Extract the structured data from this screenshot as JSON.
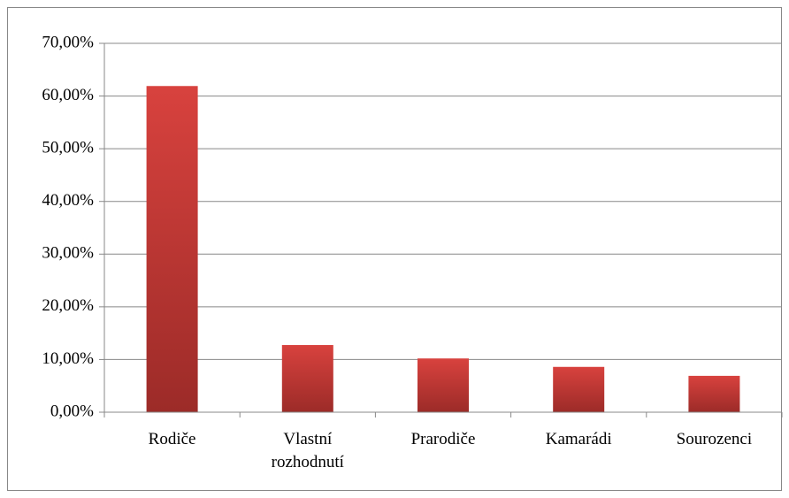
{
  "chart_data": {
    "type": "bar",
    "categories": [
      "Rodiče",
      "Vlastní rozhodnutí",
      "Prarodiče",
      "Kamarádi",
      "Sourozenci"
    ],
    "values": [
      61.9,
      12.75,
      10.2,
      8.6,
      6.9
    ],
    "color": "#d8423e",
    "ylim": [
      0,
      70
    ],
    "yticks": [
      {
        "value": 0,
        "label": "0,00%"
      },
      {
        "value": 10,
        "label": "10,00%"
      },
      {
        "value": 20,
        "label": "20,00%"
      },
      {
        "value": 30,
        "label": "30,00%"
      },
      {
        "value": 40,
        "label": "40,00%"
      },
      {
        "value": 50,
        "label": "50,00%"
      },
      {
        "value": 60,
        "label": "60,00%"
      },
      {
        "value": 70,
        "label": "70,00%"
      }
    ],
    "grid": true
  }
}
